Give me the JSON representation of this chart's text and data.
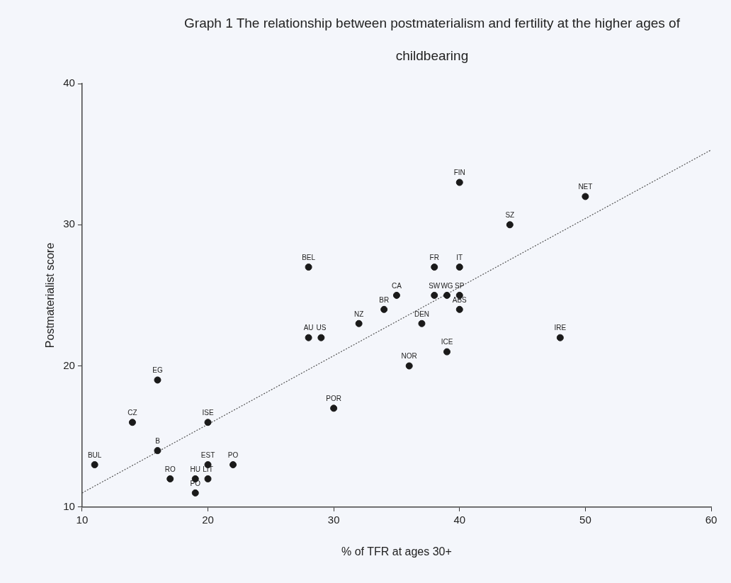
{
  "chart_data": {
    "type": "scatter",
    "title": "Graph 1 The relationship between postmaterialism and fertility at the higher ages of childbearing",
    "xlabel": "% of TFR at ages 30+",
    "ylabel": "Postmaterialist score",
    "xlim": [
      10,
      60
    ],
    "xticks": [
      10,
      20,
      30,
      40,
      50,
      60
    ],
    "ylim": [
      10,
      40
    ],
    "yticks": [
      10,
      20,
      30,
      40
    ],
    "legend": false,
    "grid": false,
    "series": [
      {
        "marker": "circle",
        "color": "#1a1a1a",
        "x": [
          11,
          14,
          16,
          16,
          17,
          19,
          19,
          20,
          20,
          20,
          22,
          30,
          28,
          28,
          29,
          32,
          34,
          35,
          38,
          40,
          38,
          39,
          40,
          40,
          37,
          39,
          36,
          40,
          44,
          50,
          48
        ],
        "values": [
          13,
          16,
          19,
          14,
          12,
          12,
          11,
          12,
          13,
          16,
          13,
          17,
          27,
          22,
          22,
          23,
          24,
          25,
          27,
          27,
          25,
          25,
          25,
          24,
          23,
          21,
          20,
          33,
          30,
          32,
          22
        ]
      },
      {
        "type": "line",
        "line_style": "dotted",
        "color": "#555555",
        "x": [
          10,
          60
        ],
        "values": [
          11,
          35.3
        ]
      }
    ],
    "annotations": [
      {
        "text": "BUL",
        "x": 11,
        "y": 13
      },
      {
        "text": "CZ",
        "x": 14,
        "y": 16
      },
      {
        "text": "EG",
        "x": 16,
        "y": 19
      },
      {
        "text": "B",
        "x": 16,
        "y": 14
      },
      {
        "text": "RO",
        "x": 17,
        "y": 12
      },
      {
        "text": "HU",
        "x": 19,
        "y": 12
      },
      {
        "text": "PO",
        "x": 19,
        "y": 11
      },
      {
        "text": "LIT",
        "x": 20,
        "y": 12
      },
      {
        "text": "EST",
        "x": 20,
        "y": 13
      },
      {
        "text": "ISE",
        "x": 20,
        "y": 16
      },
      {
        "text": "PO",
        "x": 22,
        "y": 13
      },
      {
        "text": "POR",
        "x": 30,
        "y": 17
      },
      {
        "text": "BEL",
        "x": 28,
        "y": 27
      },
      {
        "text": "AU",
        "x": 28,
        "y": 22
      },
      {
        "text": "US",
        "x": 29,
        "y": 22
      },
      {
        "text": "NZ",
        "x": 32,
        "y": 23
      },
      {
        "text": "BR",
        "x": 34,
        "y": 24
      },
      {
        "text": "CA",
        "x": 35,
        "y": 25
      },
      {
        "text": "FR",
        "x": 38,
        "y": 27
      },
      {
        "text": "IT",
        "x": 40,
        "y": 27
      },
      {
        "text": "SW",
        "x": 38,
        "y": 25
      },
      {
        "text": "WG",
        "x": 39,
        "y": 25
      },
      {
        "text": "SP",
        "x": 40,
        "y": 25
      },
      {
        "text": "ABS",
        "x": 40,
        "y": 24
      },
      {
        "text": "DEN",
        "x": 37,
        "y": 23
      },
      {
        "text": "ICE",
        "x": 39,
        "y": 21
      },
      {
        "text": "NOR",
        "x": 36,
        "y": 20
      },
      {
        "text": "FIN",
        "x": 40,
        "y": 33
      },
      {
        "text": "SZ",
        "x": 44,
        "y": 30
      },
      {
        "text": "NET",
        "x": 50,
        "y": 32
      },
      {
        "text": "IRE",
        "x": 48,
        "y": 22
      }
    ]
  }
}
